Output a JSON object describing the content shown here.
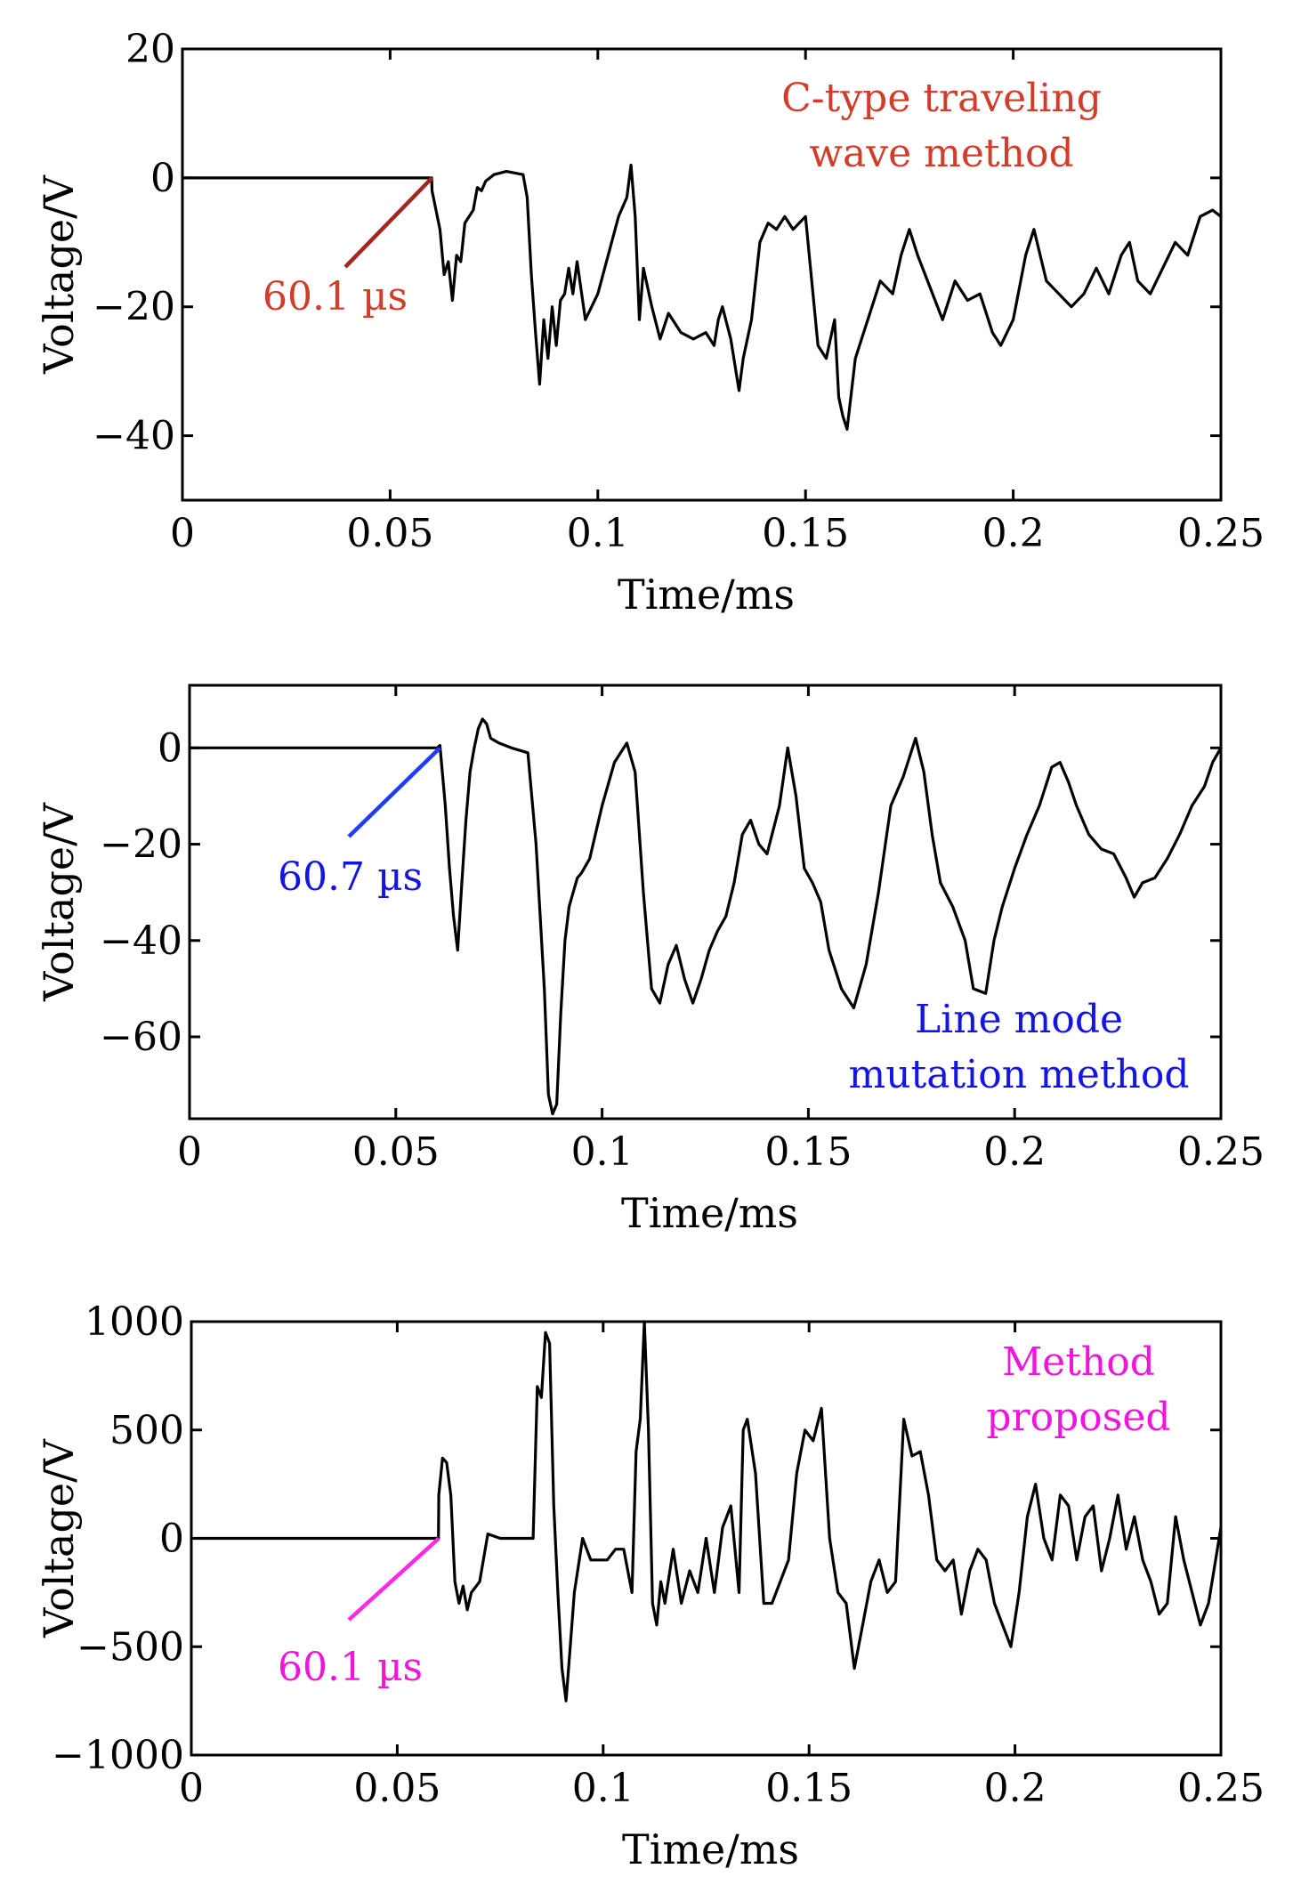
{
  "figure": {
    "background": "#ffffff",
    "line_color": "#000000"
  },
  "chart_data": [
    {
      "type": "line",
      "xlabel": "Time/ms",
      "ylabel": "Voltage/V",
      "xlim": [
        0,
        0.25
      ],
      "ylim": [
        -50,
        20
      ],
      "xticks": [
        0,
        0.05,
        0.1,
        0.15,
        0.2,
        0.25
      ],
      "xtick_labels": [
        "0",
        "0.05",
        "0.1",
        "0.15",
        "0.2",
        "0.25"
      ],
      "yticks": [
        20,
        0,
        -20,
        -40
      ],
      "ytick_labels": [
        "20",
        "0",
        "−20",
        "−40"
      ],
      "series": [
        {
          "name": "C-type traveling wave method",
          "x": [
            0,
            0.06,
            0.0601,
            0.062,
            0.063,
            0.064,
            0.065,
            0.066,
            0.067,
            0.068,
            0.07,
            0.071,
            0.072,
            0.073,
            0.075,
            0.078,
            0.082,
            0.083,
            0.084,
            0.085,
            0.086,
            0.087,
            0.088,
            0.089,
            0.09,
            0.091,
            0.092,
            0.093,
            0.094,
            0.095,
            0.097,
            0.1,
            0.105,
            0.107,
            0.108,
            0.109,
            0.11,
            0.111,
            0.113,
            0.115,
            0.117,
            0.12,
            0.123,
            0.126,
            0.128,
            0.129,
            0.13,
            0.132,
            0.134,
            0.135,
            0.137,
            0.139,
            0.141,
            0.143,
            0.145,
            0.147,
            0.15,
            0.153,
            0.155,
            0.157,
            0.158,
            0.159,
            0.16,
            0.162,
            0.165,
            0.168,
            0.171,
            0.173,
            0.175,
            0.177,
            0.18,
            0.183,
            0.186,
            0.189,
            0.192,
            0.195,
            0.197,
            0.2,
            0.203,
            0.205,
            0.208,
            0.211,
            0.214,
            0.217,
            0.22,
            0.223,
            0.226,
            0.228,
            0.23,
            0.233,
            0.236,
            0.239,
            0.242,
            0.245,
            0.248,
            0.25
          ],
          "y": [
            0,
            0,
            -2,
            -8,
            -15,
            -13,
            -19,
            -12,
            -13,
            -7,
            -5,
            -1.5,
            -2,
            -0.5,
            0.5,
            1,
            0.5,
            -3,
            -15,
            -24,
            -32,
            -22,
            -28,
            -20,
            -26,
            -19,
            -18,
            -14,
            -18,
            -13,
            -22,
            -18,
            -6,
            -3,
            2,
            -6,
            -22,
            -14,
            -20,
            -25,
            -21,
            -24,
            -25,
            -24,
            -26,
            -22,
            -20,
            -25,
            -33,
            -28,
            -22,
            -10,
            -7,
            -8,
            -6,
            -8,
            -6,
            -26,
            -28,
            -22,
            -34,
            -37,
            -39,
            -28,
            -22,
            -16,
            -18,
            -12,
            -8,
            -12,
            -17,
            -22,
            -16,
            -19,
            -18,
            -24,
            -26,
            -22,
            -12,
            -8,
            -16,
            -18,
            -20,
            -18,
            -14,
            -18,
            -12,
            -10,
            -16,
            -18,
            -14,
            -10,
            -12,
            -6,
            -5,
            -6
          ]
        }
      ],
      "annotations": [
        {
          "text": "60.1 µs",
          "color": "#d23c28",
          "line_color": "#a0281e",
          "target_x": 0.0601,
          "target_y": 0
        },
        {
          "text": "C-type traveling",
          "color": "#d23c28"
        },
        {
          "text": "wave method",
          "color": "#d23c28"
        }
      ]
    },
    {
      "type": "line",
      "xlabel": "Time/ms",
      "ylabel": "Voltage/V",
      "xlim": [
        0,
        0.25
      ],
      "ylim": [
        -77,
        13
      ],
      "xticks": [
        0,
        0.05,
        0.1,
        0.15,
        0.2,
        0.25
      ],
      "xtick_labels": [
        "0",
        "0.05",
        "0.1",
        "0.15",
        "0.2",
        "0.25"
      ],
      "yticks": [
        0,
        -20,
        -40,
        -60
      ],
      "ytick_labels": [
        "0",
        "−20",
        "−40",
        "−60"
      ],
      "series": [
        {
          "name": "Line mode mutation method",
          "x": [
            0,
            0.06,
            0.0607,
            0.062,
            0.063,
            0.064,
            0.065,
            0.066,
            0.067,
            0.068,
            0.069,
            0.07,
            0.071,
            0.072,
            0.073,
            0.075,
            0.078,
            0.082,
            0.084,
            0.086,
            0.087,
            0.088,
            0.089,
            0.09,
            0.091,
            0.092,
            0.093,
            0.094,
            0.095,
            0.097,
            0.1,
            0.103,
            0.106,
            0.108,
            0.11,
            0.112,
            0.114,
            0.116,
            0.118,
            0.12,
            0.122,
            0.124,
            0.126,
            0.128,
            0.13,
            0.132,
            0.134,
            0.136,
            0.138,
            0.14,
            0.143,
            0.145,
            0.147,
            0.149,
            0.151,
            0.153,
            0.155,
            0.158,
            0.161,
            0.164,
            0.167,
            0.17,
            0.173,
            0.176,
            0.178,
            0.18,
            0.182,
            0.185,
            0.188,
            0.19,
            0.193,
            0.195,
            0.197,
            0.2,
            0.203,
            0.206,
            0.209,
            0.211,
            0.213,
            0.215,
            0.218,
            0.221,
            0.224,
            0.227,
            0.229,
            0.231,
            0.234,
            0.237,
            0.24,
            0.243,
            0.246,
            0.248,
            0.25
          ],
          "y": [
            0,
            0,
            0.5,
            -12,
            -25,
            -35,
            -42,
            -28,
            -15,
            -5,
            0,
            4,
            6,
            5,
            2,
            1,
            0,
            -1,
            -20,
            -50,
            -72,
            -76,
            -74,
            -55,
            -40,
            -33,
            -30,
            -27,
            -26,
            -23,
            -12,
            -3,
            1,
            -5,
            -30,
            -50,
            -53,
            -45,
            -41,
            -48,
            -53,
            -48,
            -42,
            -38,
            -35,
            -28,
            -18,
            -15,
            -20,
            -22,
            -12,
            0,
            -10,
            -25,
            -28,
            -32,
            -42,
            -50,
            -54,
            -45,
            -30,
            -12,
            -6,
            2,
            -5,
            -18,
            -28,
            -33,
            -40,
            -50,
            -51,
            -40,
            -33,
            -25,
            -18,
            -12,
            -4,
            -3,
            -7,
            -12,
            -18,
            -21,
            -22,
            -27,
            -31,
            -28,
            -27,
            -23,
            -18,
            -12,
            -8,
            -3,
            0
          ]
        }
      ],
      "annotations": [
        {
          "text": "60.7 µs",
          "color": "#1414e6",
          "line_color": "#1e3cff",
          "target_x": 0.0607,
          "target_y": 0
        },
        {
          "text": "Line mode",
          "color": "#1414e6"
        },
        {
          "text": "mutation method",
          "color": "#1414e6"
        }
      ]
    },
    {
      "type": "line",
      "xlabel": "Time/ms",
      "ylabel": "Voltage/V",
      "xlim": [
        0,
        0.25
      ],
      "ylim": [
        -1000,
        1000
      ],
      "xticks": [
        0,
        0.05,
        0.1,
        0.15,
        0.2,
        0.25
      ],
      "xtick_labels": [
        "0",
        "0.05",
        "0.1",
        "0.15",
        "0.2",
        "0.25"
      ],
      "yticks": [
        1000,
        500,
        0,
        -500,
        -1000
      ],
      "ytick_labels": [
        "1000",
        "500",
        "0",
        "−500",
        "−1000"
      ],
      "series": [
        {
          "name": "Method proposed",
          "x": [
            0,
            0.06,
            0.0601,
            0.061,
            0.062,
            0.063,
            0.064,
            0.065,
            0.066,
            0.067,
            0.068,
            0.07,
            0.072,
            0.075,
            0.078,
            0.081,
            0.082,
            0.083,
            0.084,
            0.085,
            0.086,
            0.087,
            0.088,
            0.089,
            0.09,
            0.091,
            0.092,
            0.093,
            0.095,
            0.097,
            0.099,
            0.101,
            0.103,
            0.105,
            0.107,
            0.108,
            0.109,
            0.11,
            0.111,
            0.112,
            0.113,
            0.114,
            0.115,
            0.117,
            0.119,
            0.121,
            0.123,
            0.125,
            0.127,
            0.129,
            0.131,
            0.133,
            0.134,
            0.135,
            0.137,
            0.139,
            0.141,
            0.143,
            0.145,
            0.147,
            0.149,
            0.151,
            0.153,
            0.155,
            0.157,
            0.159,
            0.161,
            0.163,
            0.165,
            0.167,
            0.169,
            0.171,
            0.173,
            0.175,
            0.177,
            0.179,
            0.181,
            0.183,
            0.185,
            0.187,
            0.189,
            0.191,
            0.193,
            0.195,
            0.197,
            0.199,
            0.201,
            0.203,
            0.205,
            0.207,
            0.209,
            0.211,
            0.213,
            0.215,
            0.217,
            0.219,
            0.221,
            0.223,
            0.225,
            0.227,
            0.229,
            0.231,
            0.233,
            0.235,
            0.237,
            0.239,
            0.241,
            0.243,
            0.245,
            0.247,
            0.25
          ],
          "y": [
            0,
            0,
            200,
            370,
            350,
            200,
            -200,
            -300,
            -220,
            -330,
            -250,
            -200,
            20,
            0,
            0,
            0,
            0,
            0,
            700,
            650,
            950,
            900,
            150,
            -250,
            -600,
            -750,
            -500,
            -250,
            0,
            -100,
            -100,
            -100,
            -50,
            -50,
            -250,
            400,
            550,
            1050,
            500,
            -300,
            -400,
            -200,
            -300,
            -50,
            -300,
            -150,
            -250,
            0,
            -250,
            50,
            150,
            -250,
            500,
            550,
            300,
            -300,
            -300,
            -200,
            -100,
            300,
            500,
            450,
            600,
            0,
            -250,
            -300,
            -600,
            -400,
            -200,
            -100,
            -250,
            -200,
            550,
            380,
            400,
            200,
            -100,
            -150,
            -100,
            -350,
            -150,
            -50,
            -100,
            -300,
            -400,
            -500,
            -250,
            100,
            250,
            0,
            -100,
            200,
            150,
            -100,
            100,
            150,
            -150,
            0,
            200,
            -50,
            100,
            -100,
            -200,
            -350,
            -300,
            100,
            -100,
            -250,
            -400,
            -300,
            50
          ],
          "break_x": [
            0.0995,
            0.1085
          ]
        }
      ],
      "annotations": [
        {
          "text": "60.1 µs",
          "color": "#f014dc",
          "line_color": "#ff28e6",
          "target_x": 0.0601,
          "target_y": 0
        },
        {
          "text": "Method",
          "color": "#f014dc"
        },
        {
          "text": "proposed",
          "color": "#f014dc"
        }
      ]
    }
  ]
}
